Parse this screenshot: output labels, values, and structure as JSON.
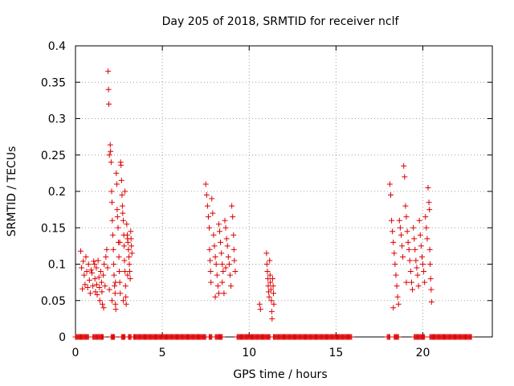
{
  "chart_data": {
    "type": "scatter",
    "title": "Day 205 of 2018, SRMTID for receiver nclf",
    "xlabel": "GPS time / hours",
    "ylabel": "SRMTID / TECUs",
    "xlim": [
      0,
      24
    ],
    "ylim": [
      0,
      0.4
    ],
    "grid": true,
    "legend": "none",
    "marker": "+",
    "xticks": [
      0,
      5,
      10,
      15,
      20
    ],
    "xtick_labels": [
      "0",
      "5",
      "10",
      "15",
      "20"
    ],
    "yticks": [
      0,
      0.05,
      0.1,
      0.15,
      0.2,
      0.25,
      0.3,
      0.35,
      0.4
    ],
    "ytick_labels": [
      "0",
      "0.05",
      "0.1",
      "0.15",
      "0.2",
      "0.25",
      "0.3",
      "0.35",
      "0.4"
    ],
    "colors": {
      "points": "#dd0000",
      "grid": "#a0a0a0",
      "axes": "#000000"
    },
    "series": [
      {
        "name": "SRMTID",
        "points": [
          [
            0.3,
            0.118
          ],
          [
            0.35,
            0.095
          ],
          [
            0.4,
            0.066
          ],
          [
            0.45,
            0.104
          ],
          [
            0.5,
            0.085
          ],
          [
            0.55,
            0.072
          ],
          [
            0.6,
            0.11
          ],
          [
            0.65,
            0.09
          ],
          [
            0.7,
            0.068
          ],
          [
            0.75,
            0.1
          ],
          [
            0.8,
            0.078
          ],
          [
            0.85,
            0.06
          ],
          [
            0.9,
            0.092
          ],
          [
            0.95,
            0.088
          ],
          [
            1.0,
            0.07
          ],
          [
            1.05,
            0.104
          ],
          [
            1.1,
            0.1
          ],
          [
            1.12,
            0.08
          ],
          [
            1.15,
            0.062
          ],
          [
            1.2,
            0.095
          ],
          [
            1.22,
            0.072
          ],
          [
            1.25,
            0.058
          ],
          [
            1.3,
            0.105
          ],
          [
            1.35,
            0.082
          ],
          [
            1.38,
            0.068
          ],
          [
            1.4,
            0.05
          ],
          [
            1.45,
            0.09
          ],
          [
            1.5,
            0.075
          ],
          [
            1.52,
            0.062
          ],
          [
            1.55,
            0.045
          ],
          [
            1.6,
            0.085
          ],
          [
            1.62,
            0.04
          ],
          [
            1.65,
            0.1
          ],
          [
            1.7,
            0.07
          ],
          [
            1.75,
            0.11
          ],
          [
            1.8,
            0.12
          ],
          [
            1.85,
            0.095
          ],
          [
            1.88,
            0.365
          ],
          [
            1.9,
            0.34
          ],
          [
            1.92,
            0.32
          ],
          [
            1.95,
            0.25
          ],
          [
            2.0,
            0.264
          ],
          [
            2.02,
            0.255
          ],
          [
            2.05,
            0.24
          ],
          [
            2.08,
            0.2
          ],
          [
            2.1,
            0.185
          ],
          [
            2.12,
            0.16
          ],
          [
            2.15,
            0.14
          ],
          [
            2.18,
            0.12
          ],
          [
            2.2,
            0.1
          ],
          [
            2.22,
            0.085
          ],
          [
            2.25,
            0.07
          ],
          [
            2.28,
            0.06
          ],
          [
            2.3,
            0.045
          ],
          [
            2.32,
            0.038
          ],
          [
            2.35,
            0.225
          ],
          [
            2.38,
            0.21
          ],
          [
            2.4,
            0.175
          ],
          [
            2.42,
            0.165
          ],
          [
            2.45,
            0.15
          ],
          [
            2.48,
            0.13
          ],
          [
            2.5,
            0.11
          ],
          [
            2.52,
            0.09
          ],
          [
            2.55,
            0.075
          ],
          [
            2.58,
            0.06
          ],
          [
            2.6,
            0.24
          ],
          [
            2.62,
            0.236
          ],
          [
            2.65,
            0.215
          ],
          [
            2.68,
            0.195
          ],
          [
            2.7,
            0.18
          ],
          [
            2.72,
            0.17
          ],
          [
            2.75,
            0.16
          ],
          [
            2.78,
            0.14
          ],
          [
            2.8,
            0.125
          ],
          [
            2.82,
            0.105
          ],
          [
            2.85,
            0.09
          ],
          [
            2.88,
            0.07
          ],
          [
            2.9,
            0.055
          ],
          [
            2.92,
            0.045
          ],
          [
            2.95,
            0.155
          ],
          [
            2.98,
            0.14
          ],
          [
            3.0,
            0.135
          ],
          [
            3.02,
            0.13
          ],
          [
            3.05,
            0.12
          ],
          [
            3.08,
            0.11
          ],
          [
            3.1,
            0.1
          ],
          [
            3.12,
            0.09
          ],
          [
            3.15,
            0.08
          ],
          [
            3.18,
            0.145
          ],
          [
            3.2,
            0.135
          ],
          [
            3.22,
            0.125
          ],
          [
            3.25,
            0.115
          ],
          [
            2.1,
            0.05
          ],
          [
            2.3,
            0.075
          ],
          [
            2.55,
            0.13
          ],
          [
            2.75,
            0.05
          ],
          [
            1.95,
            0.065
          ],
          [
            2.85,
            0.2
          ],
          [
            3.0,
            0.085
          ],
          [
            7.5,
            0.21
          ],
          [
            7.55,
            0.195
          ],
          [
            7.6,
            0.18
          ],
          [
            7.65,
            0.165
          ],
          [
            7.7,
            0.15
          ],
          [
            7.72,
            0.12
          ],
          [
            7.75,
            0.105
          ],
          [
            7.78,
            0.09
          ],
          [
            7.8,
            0.075
          ],
          [
            7.85,
            0.19
          ],
          [
            7.9,
            0.17
          ],
          [
            7.95,
            0.14
          ],
          [
            8.0,
            0.125
          ],
          [
            8.05,
            0.11
          ],
          [
            8.1,
            0.1
          ],
          [
            8.15,
            0.085
          ],
          [
            8.2,
            0.07
          ],
          [
            8.25,
            0.155
          ],
          [
            8.3,
            0.145
          ],
          [
            8.35,
            0.13
          ],
          [
            8.4,
            0.115
          ],
          [
            8.45,
            0.1
          ],
          [
            8.5,
            0.09
          ],
          [
            8.55,
            0.06
          ],
          [
            8.6,
            0.16
          ],
          [
            8.65,
            0.15
          ],
          [
            8.7,
            0.135
          ],
          [
            8.75,
            0.125
          ],
          [
            8.8,
            0.11
          ],
          [
            8.85,
            0.1
          ],
          [
            8.9,
            0.085
          ],
          [
            8.95,
            0.07
          ],
          [
            9.0,
            0.18
          ],
          [
            9.05,
            0.165
          ],
          [
            9.1,
            0.14
          ],
          [
            9.12,
            0.12
          ],
          [
            9.15,
            0.105
          ],
          [
            9.2,
            0.09
          ],
          [
            8.05,
            0.055
          ],
          [
            8.45,
            0.075
          ],
          [
            8.65,
            0.095
          ],
          [
            8.25,
            0.06
          ],
          [
            10.6,
            0.045
          ],
          [
            10.65,
            0.038
          ],
          [
            11.0,
            0.115
          ],
          [
            11.02,
            0.1
          ],
          [
            11.05,
            0.09
          ],
          [
            11.08,
            0.08
          ],
          [
            11.1,
            0.07
          ],
          [
            11.12,
            0.062
          ],
          [
            11.15,
            0.055
          ],
          [
            11.18,
            0.105
          ],
          [
            11.2,
            0.085
          ],
          [
            11.22,
            0.075
          ],
          [
            11.25,
            0.065
          ],
          [
            11.28,
            0.05
          ],
          [
            11.3,
            0.035
          ],
          [
            11.32,
            0.025
          ],
          [
            11.35,
            0.08
          ],
          [
            11.38,
            0.07
          ],
          [
            11.4,
            0.06
          ],
          [
            11.42,
            0.045
          ],
          [
            18.1,
            0.21
          ],
          [
            18.15,
            0.195
          ],
          [
            18.2,
            0.16
          ],
          [
            18.25,
            0.145
          ],
          [
            18.3,
            0.13
          ],
          [
            18.35,
            0.115
          ],
          [
            18.4,
            0.1
          ],
          [
            18.45,
            0.085
          ],
          [
            18.5,
            0.07
          ],
          [
            18.55,
            0.055
          ],
          [
            18.6,
            0.045
          ],
          [
            18.65,
            0.16
          ],
          [
            18.7,
            0.15
          ],
          [
            18.75,
            0.14
          ],
          [
            18.8,
            0.125
          ],
          [
            18.85,
            0.11
          ],
          [
            18.9,
            0.235
          ],
          [
            18.95,
            0.22
          ],
          [
            19.0,
            0.18
          ],
          [
            19.05,
            0.165
          ],
          [
            19.1,
            0.145
          ],
          [
            19.15,
            0.13
          ],
          [
            19.2,
            0.12
          ],
          [
            19.25,
            0.105
          ],
          [
            19.3,
            0.09
          ],
          [
            19.35,
            0.075
          ],
          [
            19.4,
            0.065
          ],
          [
            19.45,
            0.15
          ],
          [
            19.5,
            0.135
          ],
          [
            19.55,
            0.12
          ],
          [
            19.6,
            0.105
          ],
          [
            19.65,
            0.095
          ],
          [
            19.7,
            0.085
          ],
          [
            19.75,
            0.07
          ],
          [
            19.8,
            0.16
          ],
          [
            19.85,
            0.14
          ],
          [
            19.9,
            0.125
          ],
          [
            19.95,
            0.11
          ],
          [
            20.0,
            0.1
          ],
          [
            20.05,
            0.09
          ],
          [
            20.1,
            0.075
          ],
          [
            20.15,
            0.165
          ],
          [
            20.2,
            0.15
          ],
          [
            20.25,
            0.135
          ],
          [
            20.3,
            0.205
          ],
          [
            20.35,
            0.185
          ],
          [
            20.38,
            0.175
          ],
          [
            20.4,
            0.12
          ],
          [
            20.42,
            0.1
          ],
          [
            20.45,
            0.08
          ],
          [
            20.48,
            0.065
          ],
          [
            20.5,
            0.048
          ],
          [
            18.3,
            0.04
          ],
          [
            19.05,
            0.075
          ]
        ]
      },
      {
        "name": "SRMTID (zero)",
        "segments": [
          [
            0.0,
            0.75
          ],
          [
            1.0,
            1.6
          ],
          [
            2.05,
            2.25
          ],
          [
            2.65,
            2.85
          ],
          [
            3.05,
            3.2
          ],
          [
            3.35,
            7.5
          ],
          [
            7.7,
            7.85
          ],
          [
            8.05,
            8.45
          ],
          [
            9.3,
            11.2
          ],
          [
            11.4,
            15.9
          ],
          [
            17.95,
            18.1
          ],
          [
            18.35,
            18.6
          ],
          [
            19.5,
            20.1
          ],
          [
            20.4,
            22.8
          ]
        ]
      }
    ]
  }
}
